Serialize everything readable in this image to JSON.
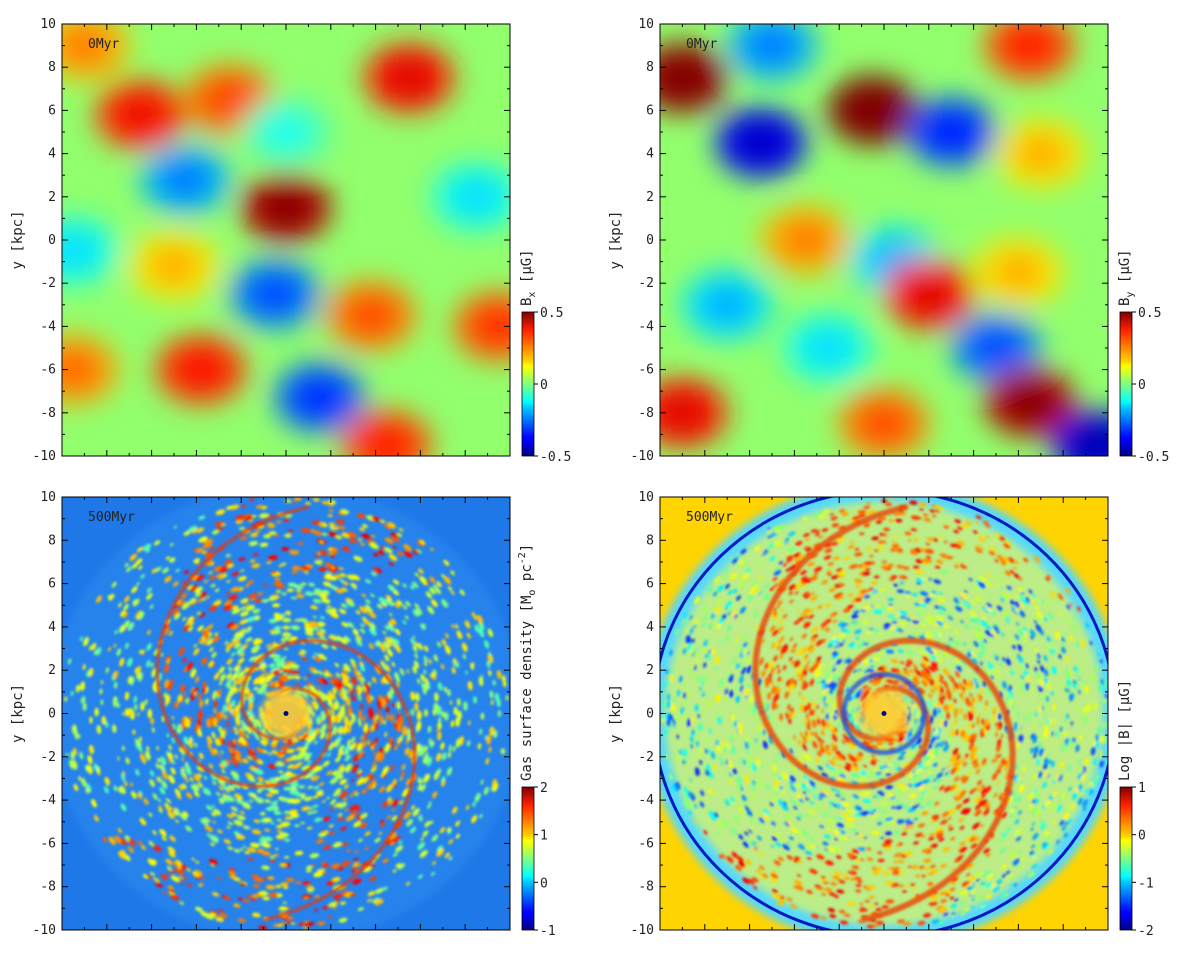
{
  "chart_data": [
    {
      "type": "heatmap",
      "panel": "top-left",
      "time_label": "0Myr",
      "ylabel": "y [kpc]",
      "yticks": [
        "10",
        "8",
        "6",
        "4",
        "2",
        "0",
        "-2",
        "-4",
        "-6",
        "-8",
        "-10"
      ],
      "ylim": [
        -10,
        10
      ],
      "xlim": [
        -10,
        10
      ],
      "colorbar": {
        "label_main": "B",
        "label_sub": "x",
        "label_unit": "[μG]",
        "range": [
          -0.5,
          0.5
        ],
        "ticks": [
          "0.5",
          "0",
          "-0.5"
        ]
      },
      "features": [
        {
          "x": -6.5,
          "y": 5.8,
          "value": 0.33
        },
        {
          "x": -2.5,
          "y": 6.5,
          "value": 0.26
        },
        {
          "x": 5.5,
          "y": 7.5,
          "value": 0.35
        },
        {
          "x": 0,
          "y": 1.5,
          "value": 0.45
        },
        {
          "x": -4.5,
          "y": 2.8,
          "value": -0.2
        },
        {
          "x": 0,
          "y": 5.0,
          "value": -0.05
        },
        {
          "x": -5,
          "y": -1.2,
          "value": 0.15
        },
        {
          "x": -0.5,
          "y": -2.5,
          "value": -0.25
        },
        {
          "x": 3.8,
          "y": -3.5,
          "value": 0.25
        },
        {
          "x": -3.8,
          "y": -6.0,
          "value": 0.32
        },
        {
          "x": 1.5,
          "y": -7.3,
          "value": -0.28
        },
        {
          "x": 4.5,
          "y": -9.5,
          "value": 0.3
        },
        {
          "x": -9.5,
          "y": -6.0,
          "value": 0.22
        },
        {
          "x": 9.5,
          "y": -4.0,
          "value": 0.28
        },
        {
          "x": -9.5,
          "y": -0.5,
          "value": -0.1
        },
        {
          "x": 8.5,
          "y": 2.0,
          "value": -0.1
        },
        {
          "x": -9.0,
          "y": 9.0,
          "value": 0.2
        }
      ]
    },
    {
      "type": "heatmap",
      "panel": "top-right",
      "time_label": "0Myr",
      "ylabel": "y [kpc]",
      "yticks": [
        "10",
        "8",
        "6",
        "4",
        "2",
        "0",
        "-2",
        "-4",
        "-6",
        "-8",
        "-10"
      ],
      "ylim": [
        -10,
        10
      ],
      "xlim": [
        -10,
        10
      ],
      "colorbar": {
        "label_main": "B",
        "label_sub": "y",
        "label_unit": "[μG]",
        "range": [
          -0.5,
          0.5
        ],
        "ticks": [
          "0.5",
          "0",
          "-0.5"
        ]
      },
      "features": [
        {
          "x": -9.0,
          "y": 7.5,
          "value": 0.48
        },
        {
          "x": -0.5,
          "y": 6.0,
          "value": 0.52
        },
        {
          "x": -5.5,
          "y": 4.5,
          "value": -0.38
        },
        {
          "x": -5.0,
          "y": 9.0,
          "value": -0.2
        },
        {
          "x": 3.0,
          "y": 5.0,
          "value": -0.3
        },
        {
          "x": 6.5,
          "y": 9.0,
          "value": 0.3
        },
        {
          "x": 7.0,
          "y": 4.0,
          "value": 0.15
        },
        {
          "x": -3.5,
          "y": 0,
          "value": 0.2
        },
        {
          "x": 0.5,
          "y": -1.0,
          "value": -0.15
        },
        {
          "x": 2.0,
          "y": -2.5,
          "value": 0.35
        },
        {
          "x": -7.0,
          "y": -3.0,
          "value": -0.15
        },
        {
          "x": 6.0,
          "y": -1.5,
          "value": 0.15
        },
        {
          "x": 5.0,
          "y": -5.0,
          "value": -0.25
        },
        {
          "x": 6.5,
          "y": -7.5,
          "value": 0.45
        },
        {
          "x": -9.0,
          "y": -8.0,
          "value": 0.35
        },
        {
          "x": 0,
          "y": -8.5,
          "value": 0.25
        },
        {
          "x": 9.5,
          "y": -9.5,
          "value": -0.4
        },
        {
          "x": -2.5,
          "y": -5.0,
          "value": -0.1
        }
      ]
    },
    {
      "type": "heatmap",
      "panel": "bottom-left",
      "time_label": "500Myr",
      "ylabel": "y [kpc]",
      "yticks": [
        "10",
        "8",
        "6",
        "4",
        "2",
        "0",
        "-2",
        "-4",
        "-6",
        "-8",
        "-10"
      ],
      "ylim": [
        -10,
        10
      ],
      "xlim": [
        -10,
        10
      ],
      "colorbar": {
        "label_main": "Gas surface density [M",
        "label_sub": "o",
        "label_unit": " pc",
        "label_sup": "-2",
        "label_close": "]",
        "range": [
          -1,
          2
        ],
        "ticks": [
          "2",
          "1",
          "0",
          "-1"
        ]
      },
      "structure": "two-armed spiral, log10 surface density"
    },
    {
      "type": "heatmap",
      "panel": "bottom-right",
      "time_label": "500Myr",
      "ylabel": "y [kpc]",
      "yticks": [
        "10",
        "8",
        "6",
        "4",
        "2",
        "0",
        "-2",
        "-4",
        "-6",
        "-8",
        "-10"
      ],
      "ylim": [
        -10,
        10
      ],
      "xlim": [
        -10,
        10
      ],
      "colorbar": {
        "label_main": "Log |B| [μG]",
        "range": [
          -2,
          1
        ],
        "ticks": [
          "1",
          "0",
          "-1",
          "-2"
        ]
      },
      "structure": "two-armed spiral magnetic field strength"
    }
  ]
}
